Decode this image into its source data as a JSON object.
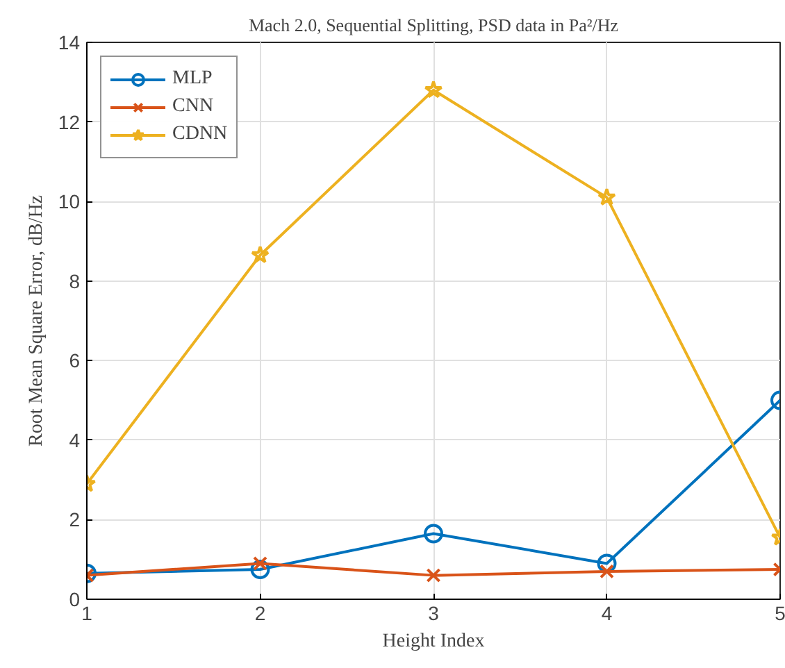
{
  "chart_data": {
    "type": "line",
    "title": "Mach 2.0, Sequential Splitting, PSD data in Pa²/Hz",
    "xlabel": "Height Index",
    "ylabel": "Root Mean Square Error, dB/Hz",
    "x": [
      1,
      2,
      3,
      4,
      5
    ],
    "series": [
      {
        "name": "MLP",
        "color": "#0072bd",
        "marker": "circle",
        "values": [
          0.65,
          0.75,
          1.65,
          0.9,
          5.0
        ]
      },
      {
        "name": "CNN",
        "color": "#d95319",
        "marker": "cross",
        "values": [
          0.6,
          0.9,
          0.6,
          0.7,
          0.75
        ]
      },
      {
        "name": "CDNN",
        "color": "#edb120",
        "marker": "star",
        "values": [
          2.9,
          8.65,
          12.8,
          10.1,
          1.55
        ]
      }
    ],
    "xlim": [
      1,
      5
    ],
    "ylim": [
      0,
      14
    ],
    "xticks": [
      1,
      2,
      3,
      4,
      5
    ],
    "yticks": [
      0,
      2,
      4,
      6,
      8,
      10,
      12,
      14
    ],
    "grid": true,
    "legend": "top left",
    "line_style": "solid"
  }
}
